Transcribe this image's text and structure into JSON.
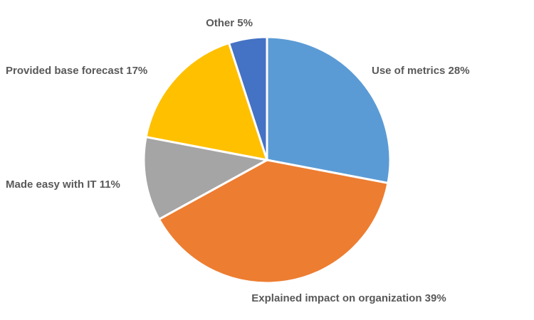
{
  "chart_data": {
    "type": "pie",
    "title": "",
    "legend": "none",
    "slices": [
      {
        "label": "Use of metrics",
        "value": 28,
        "display": "Use of metrics 28%",
        "color": "#5B9BD5"
      },
      {
        "label": "Explained impact on organization",
        "value": 39,
        "display": "Explained impact on organization 39%",
        "color": "#ED7D31"
      },
      {
        "label": "Made easy with IT",
        "value": 11,
        "display": "Made easy with IT 11%",
        "color": "#A5A5A5"
      },
      {
        "label": "Provided base forecast",
        "value": 17,
        "display": "Provided base forecast 17%",
        "color": "#FFC000"
      },
      {
        "label": "Other",
        "value": 5,
        "display": "Other 5%",
        "color": "#4472C4"
      }
    ]
  }
}
